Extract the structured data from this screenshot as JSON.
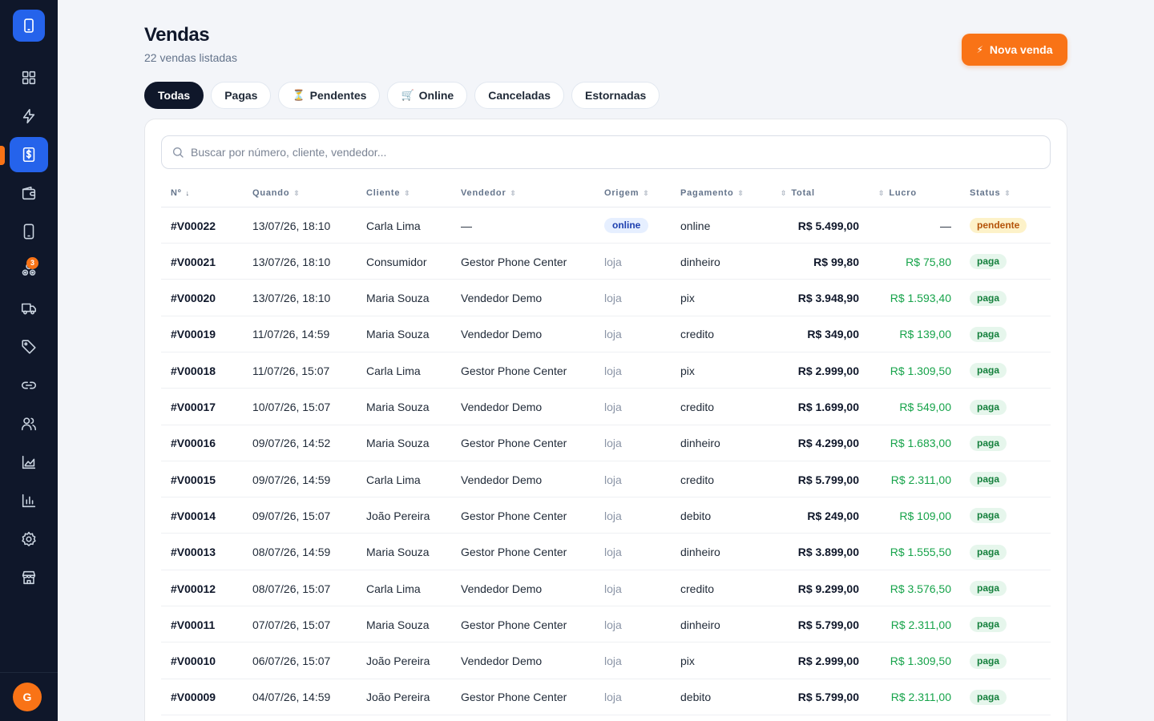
{
  "sidebar": {
    "items": [
      {
        "icon": "dashboard-icon"
      },
      {
        "icon": "bolt-icon"
      },
      {
        "icon": "sales-icon",
        "active": true
      },
      {
        "icon": "wallet-icon"
      },
      {
        "icon": "phone-icon"
      },
      {
        "icon": "parts-icon",
        "badge": "3"
      },
      {
        "icon": "truck-icon"
      },
      {
        "icon": "tag-icon"
      },
      {
        "icon": "link-icon"
      },
      {
        "icon": "users-icon"
      },
      {
        "icon": "area-chart-icon"
      },
      {
        "icon": "bar-chart-icon"
      },
      {
        "icon": "settings-icon"
      },
      {
        "icon": "store-icon"
      }
    ],
    "avatar_initial": "G"
  },
  "header": {
    "title": "Vendas",
    "subtitle": "22 vendas listadas",
    "new_sale_icon": "⚡",
    "new_sale_label": "Nova venda"
  },
  "tabs": [
    {
      "label": "Todas",
      "active": true,
      "emoji": ""
    },
    {
      "label": "Pagas",
      "emoji": ""
    },
    {
      "label": "Pendentes",
      "emoji": "⏳"
    },
    {
      "label": "Online",
      "emoji": "🛒"
    },
    {
      "label": "Canceladas",
      "emoji": ""
    },
    {
      "label": "Estornadas",
      "emoji": ""
    }
  ],
  "search": {
    "placeholder": "Buscar por número, cliente, vendedor..."
  },
  "table": {
    "columns": {
      "num": "Nº",
      "when": "Quando",
      "client": "Cliente",
      "seller": "Vendedor",
      "origin": "Origem",
      "payment": "Pagamento",
      "total": "Total",
      "profit": "Lucro",
      "status": "Status"
    },
    "rows": [
      {
        "num": "#V00022",
        "when": "13/07/26, 18:10",
        "client": "Carla Lima",
        "seller": "—",
        "origin": "online",
        "payment": "online",
        "total": "R$ 5.499,00",
        "profit": "—",
        "status": "pendente"
      },
      {
        "num": "#V00021",
        "when": "13/07/26, 18:10",
        "client": "Consumidor",
        "seller": "Gestor Phone Center",
        "origin": "loja",
        "payment": "dinheiro",
        "total": "R$ 99,80",
        "profit": "R$ 75,80",
        "status": "paga"
      },
      {
        "num": "#V00020",
        "when": "13/07/26, 18:10",
        "client": "Maria Souza",
        "seller": "Vendedor Demo",
        "origin": "loja",
        "payment": "pix",
        "total": "R$ 3.948,90",
        "profit": "R$ 1.593,40",
        "status": "paga"
      },
      {
        "num": "#V00019",
        "when": "11/07/26, 14:59",
        "client": "Maria Souza",
        "seller": "Vendedor Demo",
        "origin": "loja",
        "payment": "credito",
        "total": "R$ 349,00",
        "profit": "R$ 139,00",
        "status": "paga"
      },
      {
        "num": "#V00018",
        "when": "11/07/26, 15:07",
        "client": "Carla Lima",
        "seller": "Gestor Phone Center",
        "origin": "loja",
        "payment": "pix",
        "total": "R$ 2.999,00",
        "profit": "R$ 1.309,50",
        "status": "paga"
      },
      {
        "num": "#V00017",
        "when": "10/07/26, 15:07",
        "client": "Maria Souza",
        "seller": "Vendedor Demo",
        "origin": "loja",
        "payment": "credito",
        "total": "R$ 1.699,00",
        "profit": "R$ 549,00",
        "status": "paga"
      },
      {
        "num": "#V00016",
        "when": "09/07/26, 14:52",
        "client": "Maria Souza",
        "seller": "Gestor Phone Center",
        "origin": "loja",
        "payment": "dinheiro",
        "total": "R$ 4.299,00",
        "profit": "R$ 1.683,00",
        "status": "paga"
      },
      {
        "num": "#V00015",
        "when": "09/07/26, 14:59",
        "client": "Carla Lima",
        "seller": "Vendedor Demo",
        "origin": "loja",
        "payment": "credito",
        "total": "R$ 5.799,00",
        "profit": "R$ 2.311,00",
        "status": "paga"
      },
      {
        "num": "#V00014",
        "when": "09/07/26, 15:07",
        "client": "João Pereira",
        "seller": "Gestor Phone Center",
        "origin": "loja",
        "payment": "debito",
        "total": "R$ 249,00",
        "profit": "R$ 109,00",
        "status": "paga"
      },
      {
        "num": "#V00013",
        "when": "08/07/26, 14:59",
        "client": "Maria Souza",
        "seller": "Gestor Phone Center",
        "origin": "loja",
        "payment": "dinheiro",
        "total": "R$ 3.899,00",
        "profit": "R$ 1.555,50",
        "status": "paga"
      },
      {
        "num": "#V00012",
        "when": "08/07/26, 15:07",
        "client": "Carla Lima",
        "seller": "Vendedor Demo",
        "origin": "loja",
        "payment": "credito",
        "total": "R$ 9.299,00",
        "profit": "R$ 3.576,50",
        "status": "paga"
      },
      {
        "num": "#V00011",
        "when": "07/07/26, 15:07",
        "client": "Maria Souza",
        "seller": "Gestor Phone Center",
        "origin": "loja",
        "payment": "dinheiro",
        "total": "R$ 5.799,00",
        "profit": "R$ 2.311,00",
        "status": "paga"
      },
      {
        "num": "#V00010",
        "when": "06/07/26, 15:07",
        "client": "João Pereira",
        "seller": "Vendedor Demo",
        "origin": "loja",
        "payment": "pix",
        "total": "R$ 2.999,00",
        "profit": "R$ 1.309,50",
        "status": "paga"
      },
      {
        "num": "#V00009",
        "when": "04/07/26, 14:59",
        "client": "João Pereira",
        "seller": "Gestor Phone Center",
        "origin": "loja",
        "payment": "debito",
        "total": "R$ 5.799,00",
        "profit": "R$ 2.311,00",
        "status": "paga"
      }
    ]
  },
  "colors": {
    "sidebar_bg": "#0f172a",
    "accent_blue": "#2563eb",
    "accent_orange": "#f97316",
    "profit_green": "#16a34a"
  }
}
